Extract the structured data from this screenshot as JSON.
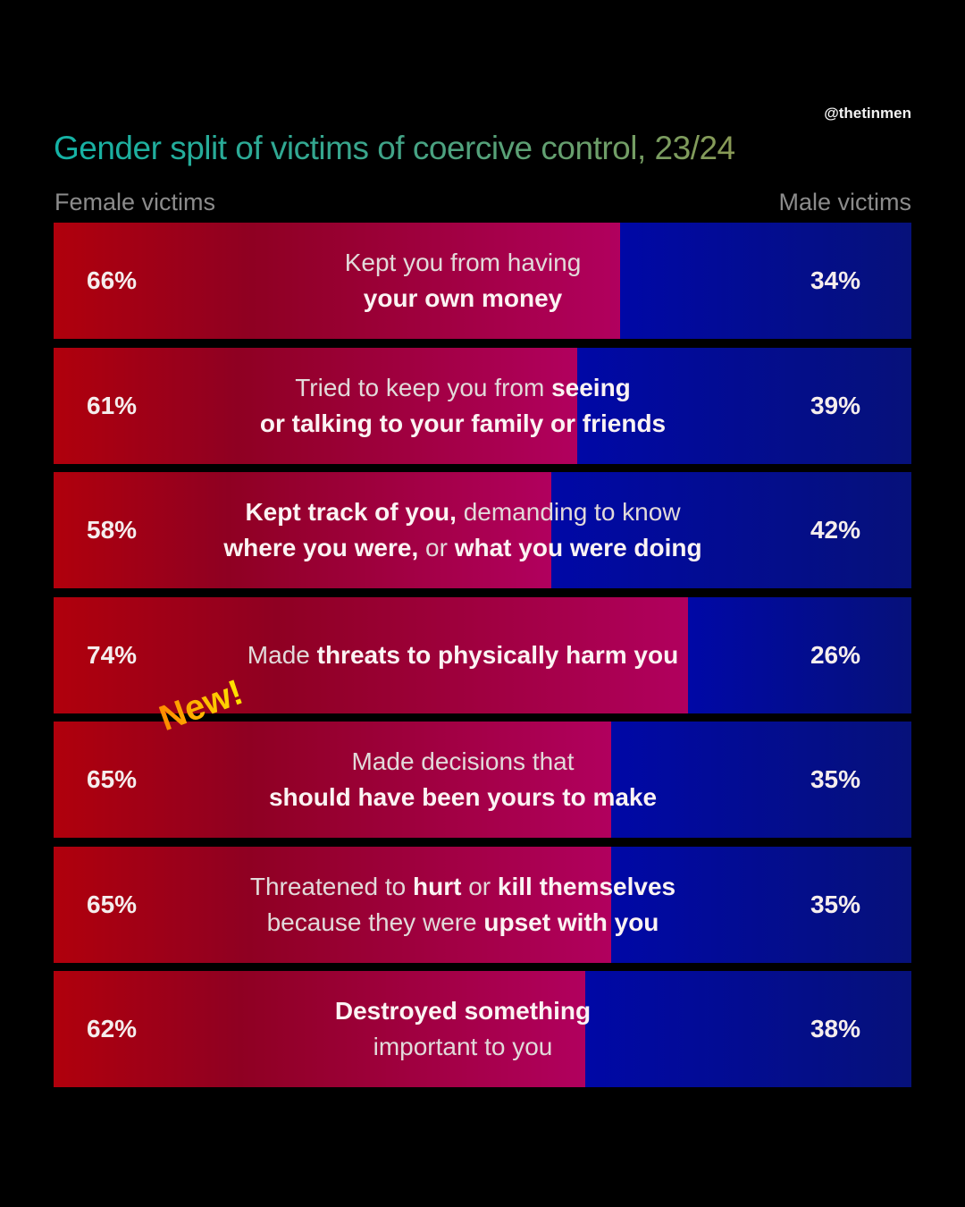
{
  "handle": "@thetinmen",
  "new_badge": "New!",
  "colors": {
    "female_start": "#b0000c",
    "female_end": "#b1005e",
    "male_start": "#0008a6",
    "male_end": "#06117a"
  },
  "chart_data": {
    "type": "bar",
    "stacked": true,
    "orientation": "horizontal",
    "title": "Gender split of victims of coercive control, 23/24",
    "left_label": "Female victims",
    "right_label": "Male victims",
    "xlim": [
      0,
      100
    ],
    "series": [
      {
        "name": "Female victims",
        "values": [
          66,
          61,
          58,
          74,
          65,
          65,
          62
        ]
      },
      {
        "name": "Male victims",
        "values": [
          34,
          39,
          42,
          26,
          35,
          35,
          38
        ]
      }
    ],
    "female_labels": [
      "66%",
      "61%",
      "58%",
      "74%",
      "65%",
      "65%",
      "62%"
    ],
    "male_labels": [
      "34%",
      "39%",
      "42%",
      "26%",
      "35%",
      "35%",
      "38%"
    ],
    "categories": [
      [
        [
          {
            "t": "Kept you from having",
            "b": false
          }
        ],
        [
          {
            "t": "your own money",
            "b": true
          }
        ]
      ],
      [
        [
          {
            "t": "Tried to keep you from ",
            "b": false
          },
          {
            "t": "seeing",
            "b": true
          }
        ],
        [
          {
            "t": "or talking to your family or friends",
            "b": true
          }
        ]
      ],
      [
        [
          {
            "t": "Kept track of you,",
            "b": true
          },
          {
            "t": " demanding to know",
            "b": false
          }
        ],
        [
          {
            "t": "where you were,",
            "b": true
          },
          {
            "t": " or ",
            "b": false
          },
          {
            "t": "what you were doing",
            "b": true
          }
        ]
      ],
      [
        [
          {
            "t": "Made ",
            "b": false
          },
          {
            "t": "threats to physically harm you",
            "b": true
          }
        ]
      ],
      [
        [
          {
            "t": "Made decisions that",
            "b": false
          }
        ],
        [
          {
            "t": "should have been yours to make",
            "b": true
          }
        ]
      ],
      [
        [
          {
            "t": "Threatened to ",
            "b": false
          },
          {
            "t": "hurt",
            "b": true
          },
          {
            "t": " or ",
            "b": false
          },
          {
            "t": "kill themselves",
            "b": true
          }
        ],
        [
          {
            "t": "because they were ",
            "b": false
          },
          {
            "t": "upset with you",
            "b": true
          }
        ]
      ],
      [
        [
          {
            "t": "Destroyed something",
            "b": true
          }
        ],
        [
          {
            "t": "important to you",
            "b": false
          }
        ]
      ]
    ]
  }
}
